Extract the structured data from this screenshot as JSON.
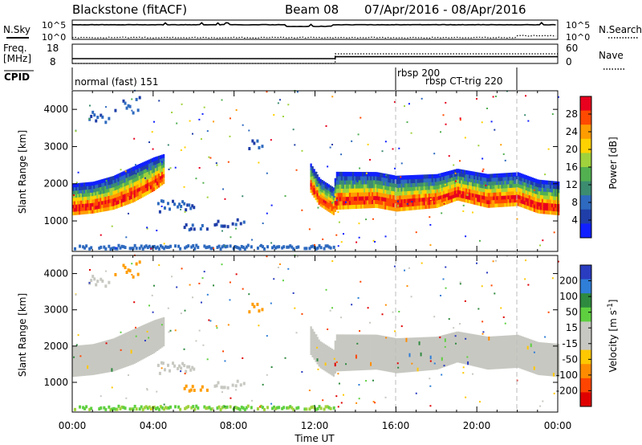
{
  "header": {
    "station": "Blackstone (fitACF)",
    "beam": "Beam 08",
    "dates": "07/Apr/2016 - 08/Apr/2016"
  },
  "strips": {
    "nsky_label": "N.Sky",
    "nsearch_label": "N.Search",
    "noise_ticks_left": [
      "10^5",
      "10^0"
    ],
    "noise_ticks_right": [
      "10^5",
      "10^0"
    ],
    "freq_label_1": "Freq.",
    "freq_label_2": "[MHz]",
    "freq_ticks": [
      "18",
      "8"
    ],
    "nave_label": "Nave",
    "nave_ticks": [
      "60",
      "0"
    ],
    "cpid_label": "CPID"
  },
  "cpid_segments": [
    {
      "label": "normal (fast) 151",
      "start_h": 0
    },
    {
      "label": "rbsp 200",
      "start_h": 16
    },
    {
      "label": "rbsp CT-trig 220",
      "start_h": 21.9
    }
  ],
  "panels": {
    "ylabel": "Slant Range [km]",
    "xlabel": "Time UT",
    "x_ticks": [
      "00:00",
      "04:00",
      "08:00",
      "12:00",
      "16:00",
      "20:00",
      "00:00"
    ],
    "y_ticks": [
      "1000",
      "2000",
      "3000",
      "4000"
    ]
  },
  "colorbars": {
    "power": {
      "label": "Power [dB]",
      "ticks": [
        "28",
        "24",
        "20",
        "16",
        "12",
        "8",
        "4"
      ],
      "colors": [
        "#e8001e",
        "#ff4a00",
        "#ff9c00",
        "#ffd200",
        "#9fd23c",
        "#52b050",
        "#3c8c70",
        "#2e6abf",
        "#1f3ea8",
        "#1020ff"
      ]
    },
    "velocity": {
      "label_main": "Velocity [m s",
      "label_sup": "-1",
      "label_end": "]",
      "ticks": [
        "200",
        "100",
        "50",
        "15",
        "-15",
        "-50",
        "-100",
        "-200"
      ],
      "colors": [
        "#2a3cc0",
        "#2f7ed8",
        "#2e8a3e",
        "#5ed040",
        "#c8c8c2",
        "#c8c8c2",
        "#ffc800",
        "#ff8c00",
        "#ff4500",
        "#e00000"
      ]
    }
  },
  "chart_data": {
    "type": "heatmap",
    "title": "Blackstone (fitACF)",
    "xlabel": "Time UT",
    "ylabel": "Slant Range [km]",
    "x_range_hours": [
      0,
      24
    ],
    "y_range_km": [
      180,
      4500
    ],
    "x_ticks": [
      "00:00",
      "04:00",
      "08:00",
      "12:00",
      "16:00",
      "20:00",
      "00:00"
    ],
    "y_ticks": [
      1000,
      2000,
      3000,
      4000
    ],
    "panels": [
      "Power [dB]",
      "Velocity [m s-1]"
    ],
    "power_scale_db": [
      0,
      30
    ],
    "velocity_scale_ms": [
      -200,
      200
    ],
    "main_echo_band_km": [
      {
        "t": 0.0,
        "lo": 1150,
        "hi": 1900
      },
      {
        "t": 1.0,
        "lo": 1200,
        "hi": 1950
      },
      {
        "t": 2.0,
        "lo": 1300,
        "hi": 2100
      },
      {
        "t": 3.0,
        "lo": 1500,
        "hi": 2350
      },
      {
        "t": 4.0,
        "lo": 1800,
        "hi": 2600
      },
      {
        "t": 4.5,
        "lo": 2000,
        "hi": 2700
      },
      {
        "t": 11.7,
        "lo": 1800,
        "hi": 2500
      },
      {
        "t": 12.2,
        "lo": 1400,
        "hi": 2050
      },
      {
        "t": 12.9,
        "lo": 1150,
        "hi": 1800
      },
      {
        "t": 13.0,
        "lo": 1300,
        "hi": 2200
      },
      {
        "t": 15.0,
        "lo": 1350,
        "hi": 2200
      },
      {
        "t": 16.0,
        "lo": 1250,
        "hi": 2100
      },
      {
        "t": 18.0,
        "lo": 1350,
        "hi": 2150
      },
      {
        "t": 19.0,
        "lo": 1550,
        "hi": 2300
      },
      {
        "t": 20.5,
        "lo": 1350,
        "hi": 2150
      },
      {
        "t": 22.0,
        "lo": 1400,
        "hi": 2200
      },
      {
        "t": 23.0,
        "lo": 1200,
        "hi": 2000
      },
      {
        "t": 24.0,
        "lo": 1150,
        "hi": 1950
      }
    ],
    "secondary_echo_patches_km": [
      {
        "t0": 0.8,
        "t1": 1.8,
        "lo": 3600,
        "hi": 3900
      },
      {
        "t0": 2.0,
        "t1": 3.3,
        "lo": 3700,
        "hi": 4400
      },
      {
        "t0": 4.2,
        "t1": 6.0,
        "lo": 1200,
        "hi": 1500
      },
      {
        "t0": 5.5,
        "t1": 6.7,
        "lo": 700,
        "hi": 850
      },
      {
        "t0": 7.0,
        "t1": 8.5,
        "lo": 800,
        "hi": 1000
      },
      {
        "t0": 8.7,
        "t1": 9.4,
        "lo": 2900,
        "hi": 3200
      },
      {
        "t0": 0.0,
        "t1": 13.0,
        "lo": 200,
        "hi": 300
      }
    ],
    "nsky_level_log": 4.3,
    "nsearch_level_log": 0.3,
    "frequency_mhz": [
      {
        "t0": 0,
        "t1": 13,
        "value": 10.5
      },
      {
        "t0": 13,
        "t1": 24,
        "value": 11.5
      }
    ],
    "nave": [
      {
        "t0": 0,
        "t1": 13,
        "value": 0
      },
      {
        "t0": 13,
        "t1": 24,
        "value": 30
      }
    ]
  }
}
